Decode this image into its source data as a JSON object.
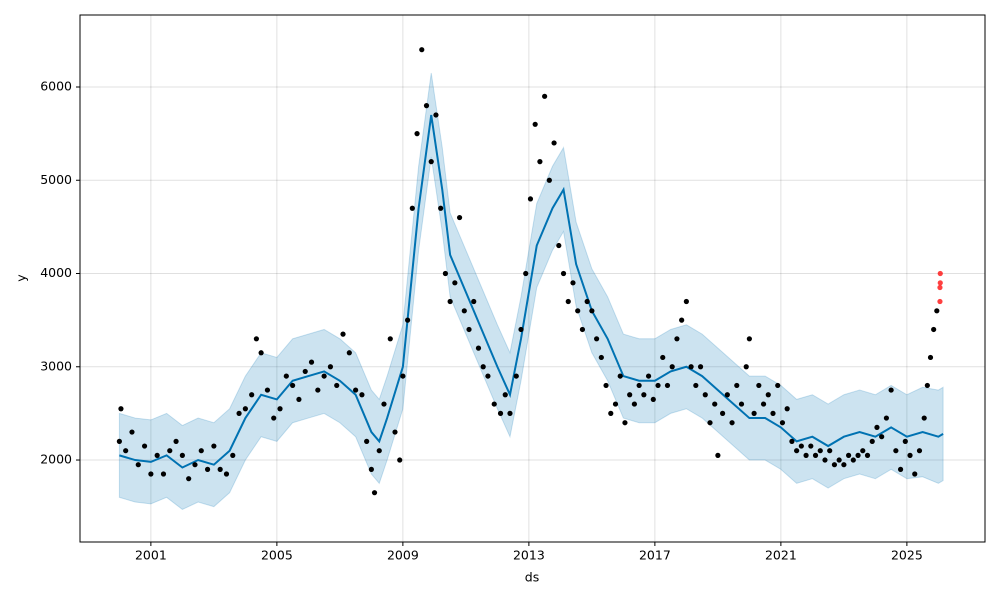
{
  "chart_data": {
    "type": "line",
    "x_label": "ds",
    "y_label": "y",
    "xlim": [
      1998.75,
      2027.48
    ],
    "ylim": [
      1121,
      6772
    ],
    "xticks": [
      2001,
      2005,
      2009,
      2013,
      2017,
      2021,
      2025
    ],
    "yticks": [
      2000,
      3000,
      4000,
      5000,
      6000
    ],
    "grid": true,
    "series": [
      {
        "kind": "scatter",
        "color": "#000000",
        "x": [
          2000.0,
          2000.05,
          2000.2,
          2000.4,
          2000.6,
          2000.8,
          2001.0,
          2001.2,
          2001.4,
          2001.6,
          2001.8,
          2002.0,
          2002.2,
          2002.4,
          2002.6,
          2002.8,
          2003.0,
          2003.2,
          2003.4,
          2003.6,
          2003.8,
          2004.0,
          2004.2,
          2004.35,
          2004.5,
          2004.7,
          2004.9,
          2005.1,
          2005.3,
          2005.5,
          2005.7,
          2005.9,
          2006.1,
          2006.3,
          2006.5,
          2006.7,
          2006.9,
          2007.1,
          2007.3,
          2007.5,
          2007.7,
          2007.85,
          2008.0,
          2008.1,
          2008.25,
          2008.4,
          2008.6,
          2008.75,
          2008.9,
          2009.0,
          2009.15,
          2009.3,
          2009.45,
          2009.6,
          2009.75,
          2009.9,
          2010.05,
          2010.2,
          2010.35,
          2010.5,
          2010.65,
          2010.8,
          2010.95,
          2011.1,
          2011.25,
          2011.4,
          2011.55,
          2011.7,
          2011.9,
          2012.1,
          2012.25,
          2012.4,
          2012.6,
          2012.75,
          2012.9,
          2013.05,
          2013.2,
          2013.35,
          2013.5,
          2013.65,
          2013.8,
          2013.95,
          2014.1,
          2014.25,
          2014.4,
          2014.55,
          2014.7,
          2014.85,
          2015.0,
          2015.15,
          2015.3,
          2015.45,
          2015.6,
          2015.75,
          2015.9,
          2016.05,
          2016.2,
          2016.35,
          2016.5,
          2016.65,
          2016.8,
          2016.95,
          2017.1,
          2017.25,
          2017.4,
          2017.55,
          2017.7,
          2017.85,
          2018.0,
          2018.15,
          2018.3,
          2018.45,
          2018.6,
          2018.75,
          2018.9,
          2019.0,
          2019.15,
          2019.3,
          2019.45,
          2019.6,
          2019.75,
          2019.9,
          2020.0,
          2020.15,
          2020.3,
          2020.45,
          2020.6,
          2020.75,
          2020.9,
          2021.05,
          2021.2,
          2021.35,
          2021.5,
          2021.65,
          2021.8,
          2021.95,
          2022.1,
          2022.25,
          2022.4,
          2022.55,
          2022.7,
          2022.85,
          2023.0,
          2023.15,
          2023.3,
          2023.45,
          2023.6,
          2023.75,
          2023.9,
          2024.05,
          2024.2,
          2024.35,
          2024.5,
          2024.65,
          2024.8,
          2024.95,
          2025.1,
          2025.25,
          2025.4,
          2025.55,
          2025.65,
          2025.75,
          2025.85,
          2025.95
        ],
        "values": [
          2200,
          2550,
          2100,
          2300,
          1950,
          2150,
          1850,
          2050,
          1850,
          2100,
          2200,
          2050,
          1800,
          1950,
          2100,
          1900,
          2150,
          1900,
          1850,
          2050,
          2500,
          2550,
          2700,
          3300,
          3150,
          2750,
          2450,
          2550,
          2900,
          2800,
          2650,
          2950,
          3050,
          2750,
          2900,
          3000,
          2800,
          3350,
          3150,
          2750,
          2700,
          2200,
          1900,
          1650,
          2100,
          2600,
          3300,
          2300,
          2000,
          2900,
          3500,
          4700,
          5500,
          6400,
          5800,
          5200,
          5700,
          4700,
          4000,
          3700,
          3900,
          4600,
          3600,
          3400,
          3700,
          3200,
          3000,
          2900,
          2600,
          2500,
          2700,
          2500,
          2900,
          3400,
          4000,
          4800,
          5600,
          5200,
          5900,
          5000,
          5400,
          4300,
          4000,
          3700,
          3900,
          3600,
          3400,
          3700,
          3600,
          3300,
          3100,
          2800,
          2500,
          2600,
          2900,
          2400,
          2700,
          2600,
          2800,
          2700,
          2900,
          2650,
          2800,
          3100,
          2800,
          3000,
          3300,
          3500,
          3700,
          3000,
          2800,
          3000,
          2700,
          2400,
          2600,
          2050,
          2500,
          2700,
          2400,
          2800,
          2600,
          3000,
          3300,
          2500,
          2800,
          2600,
          2700,
          2500,
          2800,
          2400,
          2550,
          2200,
          2100,
          2150,
          2050,
          2150,
          2050,
          2100,
          2000,
          2100,
          1950,
          2000,
          1950,
          2050,
          2000,
          2050,
          2100,
          2050,
          2200,
          2350,
          2250,
          2450,
          2750,
          2100,
          1900,
          2200,
          2050,
          1850,
          2100,
          2450,
          2800,
          3100,
          3400,
          3600
        ]
      },
      {
        "kind": "scatter",
        "color": "#ff0000",
        "x": [
          2026.05,
          2026.05,
          2026.06,
          2026.06
        ],
        "values": [
          3700,
          3850,
          4000,
          3900
        ]
      },
      {
        "kind": "line",
        "color": "#0072B2",
        "x": [
          2000.0,
          2000.5,
          2001.0,
          2001.5,
          2002.0,
          2002.5,
          2003.0,
          2003.5,
          2004.0,
          2004.5,
          2005.0,
          2005.5,
          2006.0,
          2006.5,
          2007.0,
          2007.5,
          2008.0,
          2008.25,
          2008.5,
          2009.0,
          2009.5,
          2009.9,
          2010.25,
          2010.5,
          2011.0,
          2011.5,
          2012.0,
          2012.4,
          2012.75,
          2013.25,
          2013.75,
          2014.1,
          2014.5,
          2015.0,
          2015.5,
          2016.0,
          2016.5,
          2017.0,
          2017.5,
          2018.0,
          2018.5,
          2019.0,
          2019.5,
          2020.0,
          2020.5,
          2021.0,
          2021.5,
          2022.0,
          2022.5,
          2023.0,
          2023.5,
          2024.0,
          2024.5,
          2025.0,
          2025.5,
          2026.0,
          2026.15
        ],
        "values": [
          2050,
          2000,
          1980,
          2050,
          1920,
          2000,
          1950,
          2100,
          2450,
          2700,
          2650,
          2850,
          2900,
          2950,
          2850,
          2700,
          2300,
          2200,
          2450,
          3000,
          4700,
          5700,
          4900,
          4200,
          3800,
          3400,
          3000,
          2700,
          3300,
          4300,
          4700,
          4900,
          4100,
          3600,
          3300,
          2900,
          2850,
          2850,
          2950,
          3000,
          2900,
          2750,
          2600,
          2450,
          2450,
          2350,
          2200,
          2250,
          2150,
          2250,
          2300,
          2250,
          2350,
          2250,
          2300,
          2250,
          2280
        ],
        "upper": [
          2500,
          2450,
          2430,
          2500,
          2370,
          2450,
          2400,
          2550,
          2900,
          3150,
          3100,
          3300,
          3350,
          3400,
          3300,
          3150,
          2750,
          2650,
          2900,
          3450,
          5150,
          6150,
          5350,
          4650,
          4250,
          3850,
          3450,
          3150,
          3750,
          4750,
          5150,
          5350,
          4550,
          4050,
          3750,
          3350,
          3300,
          3300,
          3400,
          3450,
          3350,
          3200,
          3050,
          2900,
          2900,
          2800,
          2650,
          2700,
          2600,
          2700,
          2750,
          2700,
          2800,
          2700,
          2780,
          2750,
          2780
        ],
        "lower": [
          1600,
          1550,
          1530,
          1600,
          1470,
          1550,
          1500,
          1650,
          2000,
          2250,
          2200,
          2400,
          2450,
          2500,
          2400,
          2250,
          1850,
          1750,
          2000,
          2550,
          4250,
          5250,
          4450,
          3750,
          3350,
          2950,
          2550,
          2250,
          2850,
          3850,
          4250,
          4450,
          3650,
          3150,
          2850,
          2450,
          2400,
          2400,
          2500,
          2550,
          2450,
          2300,
          2150,
          2000,
          2000,
          1900,
          1750,
          1800,
          1700,
          1800,
          1850,
          1800,
          1900,
          1800,
          1820,
          1750,
          1780
        ]
      }
    ]
  }
}
